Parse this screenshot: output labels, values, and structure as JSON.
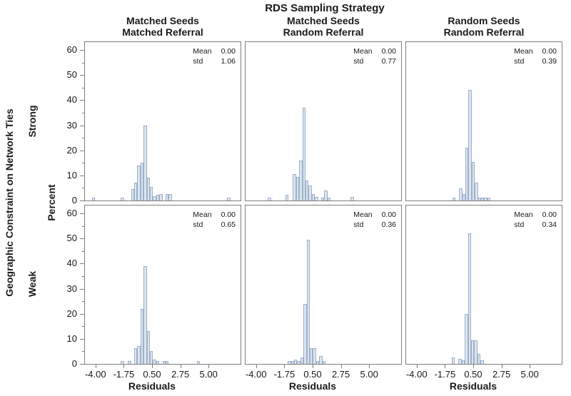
{
  "title": "RDS Sampling Strategy",
  "axes": {
    "row_dimension_label": "Geographic Constraint on Network Ties",
    "y_label": "Percent",
    "x_label": "Residuals",
    "x_tick_labels": [
      "-4.00",
      "-1.75",
      "0.50",
      "2.75",
      "5.00"
    ],
    "x_tick_values": [
      -4.0,
      -1.75,
      0.5,
      2.75,
      5.0
    ],
    "y_tick_values": [
      0,
      10,
      20,
      30,
      40,
      50,
      60
    ],
    "y_minor_tick_values": [
      5,
      15,
      25,
      35,
      45,
      55
    ]
  },
  "columns": [
    {
      "line1": "Matched Seeds",
      "line2": "Matched Referral"
    },
    {
      "line1": "Matched Seeds",
      "line2": "Random Referral"
    },
    {
      "line1": "Random Seeds",
      "line2": "Random Referral"
    }
  ],
  "rows": [
    {
      "label": "Strong"
    },
    {
      "label": "Weak"
    }
  ],
  "colors": {
    "bar_fill": "#dce5f0",
    "bar_border": "#9db0c8",
    "axis": "#7f7f7f",
    "text": "#1a1a1a"
  },
  "chart_data": [
    {
      "type": "bar",
      "row": "Strong",
      "column": "Matched Seeds / Matched Referral",
      "stats": {
        "mean_label": "Mean",
        "mean_value": "0.00",
        "std_label": "std",
        "std_value": "1.06"
      },
      "xlim": [
        -4.9,
        7.6
      ],
      "ylim": [
        0,
        60
      ],
      "bin_width": 0.25,
      "xlabel": "Residuals",
      "ylabel": "Percent",
      "bins": [
        [
          -4.15,
          1.2
        ],
        [
          -1.85,
          1.2
        ],
        [
          -1.05,
          4.5
        ],
        [
          -0.8,
          7
        ],
        [
          -0.55,
          14
        ],
        [
          -0.3,
          15
        ],
        [
          -0.05,
          30
        ],
        [
          0.2,
          9
        ],
        [
          0.45,
          5.5
        ],
        [
          0.7,
          1.6
        ],
        [
          0.95,
          2.3
        ],
        [
          1.2,
          2.5
        ],
        [
          1.7,
          2.5
        ],
        [
          1.95,
          2.5
        ],
        [
          6.6,
          1.2
        ]
      ]
    },
    {
      "type": "bar",
      "row": "Strong",
      "column": "Matched Seeds / Random Referral",
      "stats": {
        "mean_label": "Mean",
        "mean_value": "0.00",
        "std_label": "std",
        "std_value": "0.77"
      },
      "xlim": [
        -4.9,
        7.6
      ],
      "ylim": [
        0,
        60
      ],
      "bin_width": 0.25,
      "xlabel": "Residuals",
      "ylabel": "Percent",
      "bins": [
        [
          -2.95,
          1.1
        ],
        [
          -1.55,
          2.3
        ],
        [
          -0.95,
          10.5
        ],
        [
          -0.7,
          9.5
        ],
        [
          -0.45,
          16
        ],
        [
          -0.2,
          37
        ],
        [
          0.05,
          7.9
        ],
        [
          0.3,
          6
        ],
        [
          0.55,
          2.7
        ],
        [
          0.8,
          1.5
        ],
        [
          1.3,
          1.2
        ],
        [
          1.55,
          4
        ],
        [
          1.8,
          1.2
        ],
        [
          3.65,
          1.4
        ]
      ]
    },
    {
      "type": "bar",
      "row": "Strong",
      "column": "Random Seeds / Random Referral",
      "stats": {
        "mean_label": "Mean",
        "mean_value": "0.00",
        "std_label": "std",
        "std_value": "0.39"
      },
      "xlim": [
        -4.9,
        7.6
      ],
      "ylim": [
        0,
        60
      ],
      "bin_width": 0.25,
      "xlabel": "Residuals",
      "ylabel": "Percent",
      "bins": [
        [
          -1.05,
          1.0
        ],
        [
          -0.5,
          4.7
        ],
        [
          -0.25,
          2.6
        ],
        [
          0.0,
          21
        ],
        [
          0.25,
          44
        ],
        [
          0.5,
          15.3
        ],
        [
          0.75,
          7
        ],
        [
          1.0,
          1.0
        ],
        [
          1.25,
          1.0
        ],
        [
          1.5,
          1.0
        ],
        [
          1.75,
          1.0
        ]
      ]
    },
    {
      "type": "bar",
      "row": "Weak",
      "column": "Matched Seeds / Matched Referral",
      "stats": {
        "mean_label": "Mean",
        "mean_value": "0.00",
        "std_label": "std",
        "std_value": "0.65"
      },
      "xlim": [
        -4.9,
        7.6
      ],
      "ylim": [
        0,
        60
      ],
      "bin_width": 0.25,
      "xlabel": "Residuals",
      "ylabel": "Percent",
      "bins": [
        [
          -1.85,
          1.2
        ],
        [
          -1.3,
          1.2
        ],
        [
          -0.8,
          6.3
        ],
        [
          -0.55,
          7.1
        ],
        [
          -0.3,
          22
        ],
        [
          -0.05,
          39
        ],
        [
          0.2,
          13
        ],
        [
          0.45,
          5
        ],
        [
          0.7,
          1.8
        ],
        [
          0.95,
          1.2
        ],
        [
          1.45,
          1.2
        ],
        [
          1.7,
          1.2
        ],
        [
          4.2,
          1.2
        ]
      ]
    },
    {
      "type": "bar",
      "row": "Weak",
      "column": "Matched Seeds / Random Referral",
      "stats": {
        "mean_label": "Mean",
        "mean_value": "0.00",
        "std_label": "std",
        "std_value": "0.36"
      },
      "xlim": [
        -4.9,
        7.6
      ],
      "ylim": [
        0,
        60
      ],
      "bin_width": 0.25,
      "xlabel": "Residuals",
      "ylabel": "Percent",
      "bins": [
        [
          -1.35,
          1.1
        ],
        [
          -1.1,
          1.1
        ],
        [
          -0.85,
          1.6
        ],
        [
          -0.6,
          1.1
        ],
        [
          -0.35,
          2.6
        ],
        [
          -0.1,
          24
        ],
        [
          0.15,
          49.5
        ],
        [
          0.4,
          6.3
        ],
        [
          0.65,
          6.3
        ],
        [
          0.9,
          1.1
        ],
        [
          1.15,
          3.0
        ],
        [
          1.4,
          1.0
        ]
      ]
    },
    {
      "type": "bar",
      "row": "Weak",
      "column": "Random Seeds / Random Referral",
      "stats": {
        "mean_label": "Mean",
        "mean_value": "0.00",
        "std_label": "std",
        "std_value": "0.34"
      },
      "xlim": [
        -4.9,
        7.6
      ],
      "ylim": [
        0,
        60
      ],
      "bin_width": 0.25,
      "xlabel": "Residuals",
      "ylabel": "Percent",
      "bins": [
        [
          -1.1,
          2.6
        ],
        [
          -0.55,
          1.9
        ],
        [
          -0.3,
          1.3
        ],
        [
          -0.05,
          20
        ],
        [
          0.2,
          52
        ],
        [
          0.45,
          9.5
        ],
        [
          0.7,
          9.5
        ],
        [
          0.95,
          4.0
        ],
        [
          1.2,
          1.3
        ]
      ]
    }
  ]
}
